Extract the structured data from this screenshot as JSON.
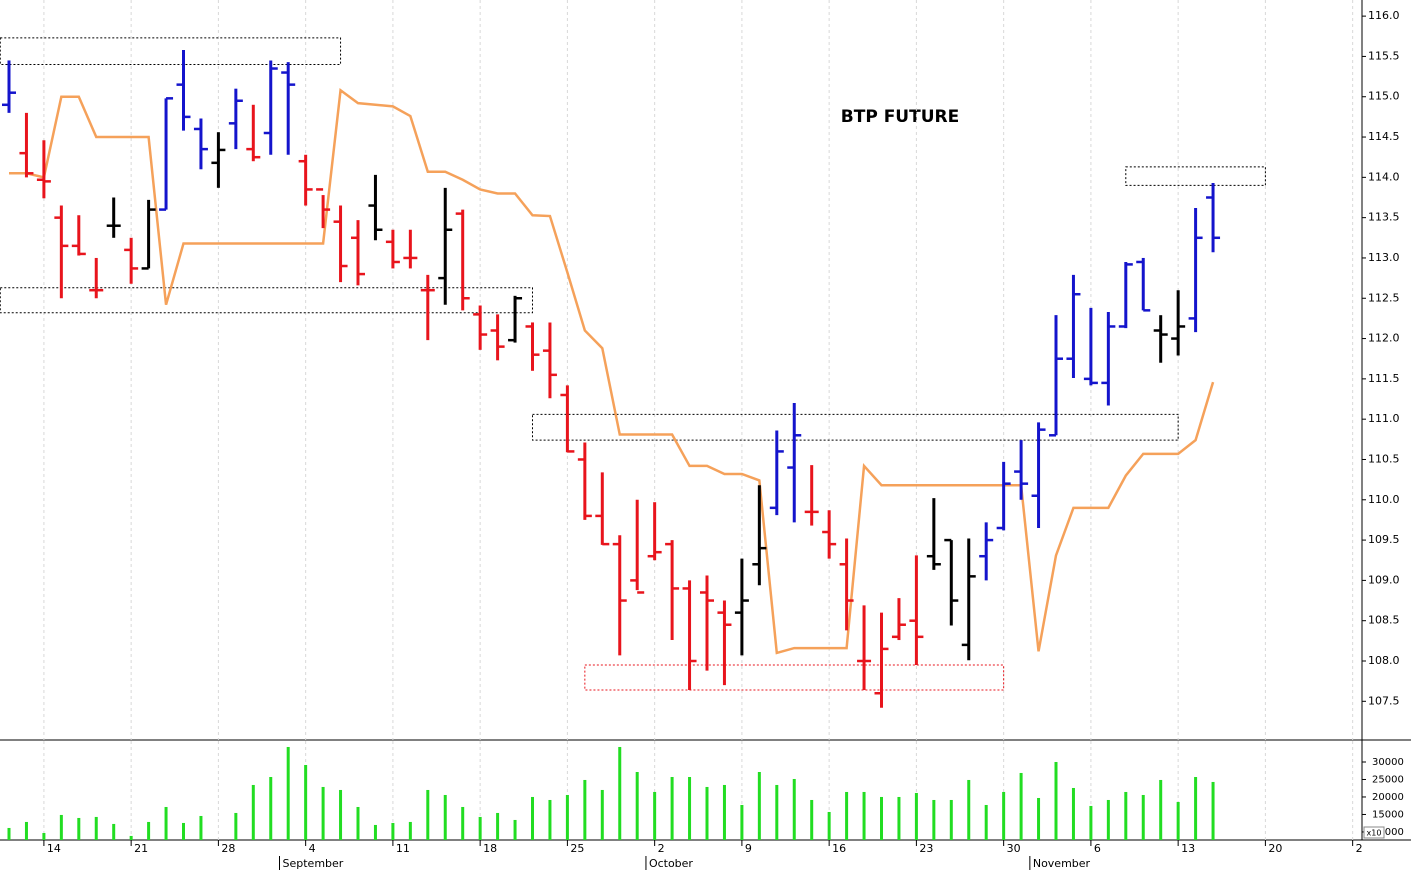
{
  "chart_data": [
    {
      "type": "ohlc",
      "title": "BTP FUTURE",
      "categories": [
        null,
        null,
        "14",
        null,
        null,
        null,
        null,
        "21",
        null,
        null,
        null,
        null,
        "28",
        null,
        null,
        null,
        null,
        "4",
        null,
        null,
        null,
        null,
        "11",
        null,
        null,
        null,
        null,
        "18",
        null,
        null,
        null,
        null,
        "25",
        null,
        null,
        null,
        null,
        "2",
        null,
        null,
        null,
        null,
        "9",
        null,
        null,
        null,
        null,
        "16",
        null,
        null,
        null,
        null,
        "23",
        null,
        null,
        null,
        null,
        "30",
        null,
        null,
        null,
        null,
        "6",
        null,
        null,
        null,
        null,
        "13",
        null,
        null,
        null,
        null,
        "20",
        null,
        null,
        null,
        null,
        "2"
      ],
      "months": [
        null,
        null,
        null,
        null,
        null,
        null,
        null,
        null,
        null,
        null,
        null,
        null,
        null,
        null,
        null,
        null,
        "September",
        null,
        null,
        null,
        null,
        null,
        null,
        null,
        null,
        null,
        null,
        null,
        null,
        null,
        null,
        null,
        null,
        null,
        null,
        null,
        null,
        "October",
        null,
        null,
        null,
        null,
        null,
        null,
        null,
        null,
        null,
        null,
        null,
        null,
        null,
        null,
        null,
        null,
        null,
        null,
        null,
        null,
        null,
        "November",
        null,
        null,
        null,
        null,
        null,
        null,
        null,
        null,
        null,
        null,
        null,
        null,
        null,
        null,
        null,
        null,
        null,
        null
      ],
      "open": [
        114.9,
        114.3,
        113.97,
        113.5,
        113.15,
        112.6,
        113.4,
        113.1,
        112.87,
        113.6,
        115.15,
        114.6,
        114.18,
        114.67,
        114.35,
        114.55,
        115.3,
        114.2,
        113.85,
        113.45,
        113.25,
        113.65,
        113.2,
        113.0,
        112.6,
        112.75,
        113.55,
        112.3,
        112.1,
        111.98,
        112.15,
        111.85,
        111.3,
        110.5,
        109.8,
        109.45,
        109.0,
        109.3,
        109.45,
        108.9,
        108.85,
        108.6,
        108.6,
        109.2,
        109.9,
        110.4,
        109.85,
        109.6,
        109.2,
        108.0,
        107.6,
        108.3,
        108.5,
        109.3,
        109.5,
        108.2,
        109.3,
        109.65,
        110.35,
        110.05,
        110.8,
        111.75,
        111.5,
        111.45,
        112.15,
        112.95,
        112.1,
        112.0,
        112.25,
        113.75,
        null,
        null,
        null,
        null,
        null,
        null,
        null,
        null
      ],
      "high": [
        115.45,
        114.8,
        114.46,
        113.65,
        113.53,
        113.0,
        113.75,
        113.25,
        113.72,
        114.98,
        115.58,
        114.73,
        114.56,
        115.1,
        114.9,
        115.45,
        115.43,
        114.28,
        113.78,
        113.65,
        113.47,
        114.03,
        113.35,
        113.35,
        112.79,
        113.87,
        113.6,
        112.41,
        112.3,
        112.53,
        112.2,
        112.2,
        111.42,
        110.71,
        110.34,
        109.56,
        110.0,
        109.97,
        109.5,
        109.0,
        109.06,
        108.75,
        109.27,
        110.18,
        110.86,
        111.2,
        110.43,
        109.87,
        109.52,
        108.69,
        108.6,
        108.78,
        109.31,
        110.02,
        109.5,
        109.52,
        109.72,
        110.47,
        110.74,
        110.96,
        112.29,
        112.79,
        112.38,
        112.33,
        112.95,
        113.0,
        112.29,
        112.6,
        113.62,
        113.93,
        null,
        null,
        null,
        null,
        null,
        null,
        null,
        null
      ],
      "low": [
        114.8,
        114.0,
        113.74,
        112.5,
        113.03,
        112.5,
        113.25,
        112.68,
        112.87,
        113.6,
        114.58,
        114.1,
        113.87,
        114.35,
        114.2,
        114.28,
        114.28,
        113.65,
        113.37,
        112.7,
        112.66,
        113.22,
        112.87,
        112.87,
        111.98,
        112.42,
        112.35,
        111.86,
        111.73,
        111.95,
        111.6,
        111.26,
        110.59,
        109.75,
        109.44,
        108.07,
        108.88,
        109.25,
        108.26,
        107.64,
        107.88,
        107.7,
        108.07,
        108.94,
        109.81,
        109.72,
        109.68,
        109.27,
        108.38,
        107.64,
        107.42,
        108.26,
        107.95,
        109.13,
        108.44,
        108.01,
        109.0,
        109.62,
        110.0,
        109.65,
        110.8,
        111.51,
        111.42,
        111.17,
        112.13,
        112.35,
        111.7,
        111.79,
        112.08,
        113.07,
        null,
        null,
        null,
        null,
        null,
        null,
        null,
        null
      ],
      "close": [
        115.05,
        114.05,
        113.95,
        113.15,
        113.05,
        112.6,
        113.4,
        112.87,
        113.6,
        114.98,
        114.75,
        114.35,
        114.34,
        114.95,
        114.25,
        115.35,
        115.15,
        113.85,
        113.6,
        112.9,
        112.8,
        113.35,
        112.95,
        113.0,
        112.6,
        113.35,
        112.5,
        112.05,
        111.9,
        112.5,
        111.8,
        111.55,
        110.6,
        109.8,
        109.45,
        108.75,
        108.85,
        109.35,
        108.9,
        108.0,
        108.75,
        108.45,
        108.75,
        109.4,
        110.6,
        110.8,
        109.85,
        109.45,
        108.75,
        108.0,
        108.15,
        108.45,
        108.3,
        109.2,
        108.75,
        109.05,
        109.5,
        110.2,
        110.2,
        110.87,
        111.75,
        112.55,
        111.45,
        112.15,
        112.92,
        112.35,
        112.05,
        112.15,
        113.25,
        113.25,
        null,
        null,
        null,
        null,
        null,
        null,
        null,
        null
      ],
      "palette": {
        "r": "#e8141c",
        "b": "#1414cc",
        "k": "#000000"
      },
      "bar_colors": [
        "b",
        "r",
        "r",
        "r",
        "r",
        "r",
        "k",
        "r",
        "k",
        "b",
        "b",
        "b",
        "k",
        "b",
        "r",
        "b",
        "b",
        "r",
        "r",
        "r",
        "r",
        "k",
        "r",
        "r",
        "r",
        "k",
        "r",
        "r",
        "r",
        "k",
        "r",
        "r",
        "r",
        "r",
        "r",
        "r",
        "r",
        "r",
        "r",
        "r",
        "r",
        "r",
        "k",
        "k",
        "b",
        "b",
        "r",
        "r",
        "r",
        "r",
        "r",
        "r",
        "r",
        "k",
        "k",
        "k",
        "b",
        "b",
        "b",
        "b",
        "b",
        "b",
        "b",
        "b",
        "b",
        "b",
        "k",
        "k",
        "b",
        "b",
        null,
        null,
        null,
        null,
        null,
        null,
        null,
        null
      ],
      "overlay": {
        "color": "#f5a15a",
        "values": [
          114.05,
          114.05,
          114.0,
          115.0,
          115.0,
          114.5,
          114.5,
          114.5,
          114.5,
          112.42,
          113.18,
          113.18,
          113.18,
          113.18,
          113.18,
          113.18,
          113.18,
          113.18,
          113.18,
          115.08,
          114.92,
          114.9,
          114.88,
          114.76,
          114.07,
          114.07,
          113.97,
          113.85,
          113.8,
          113.8,
          113.53,
          113.52,
          112.82,
          112.1,
          111.88,
          110.81,
          110.81,
          110.81,
          110.81,
          110.42,
          110.42,
          110.32,
          110.32,
          110.24,
          108.1,
          108.16,
          108.16,
          108.16,
          108.16,
          110.42,
          110.18,
          110.18,
          110.18,
          110.18,
          110.18,
          110.18,
          110.18,
          110.18,
          110.18,
          108.12,
          109.31,
          109.9,
          109.9,
          109.9,
          110.3,
          110.57,
          110.57,
          110.57,
          110.74,
          111.46,
          null,
          null,
          null,
          null,
          null,
          null,
          null,
          null
        ]
      },
      "zones": [
        {
          "x": [
            -0.5,
            19
          ],
          "y": [
            115.4,
            115.73
          ],
          "color": "#000000"
        },
        {
          "x": [
            -0.5,
            30
          ],
          "y": [
            112.32,
            112.63
          ],
          "color": "#000000"
        },
        {
          "x": [
            30,
            67
          ],
          "y": [
            110.74,
            111.06
          ],
          "color": "#000000"
        },
        {
          "x": [
            64,
            72
          ],
          "y": [
            113.9,
            114.13
          ],
          "color": "#000000"
        },
        {
          "x": [
            33,
            57
          ],
          "y": [
            107.64,
            107.95
          ],
          "color": "#e8141c"
        }
      ],
      "ylim": [
        107.02,
        116.2
      ],
      "yticks": [
        {
          "value": 107.5,
          "label": "107.5"
        },
        {
          "value": 108,
          "label": "108.0"
        },
        {
          "value": 108.5,
          "label": "108.5"
        },
        {
          "value": 109,
          "label": "109.0"
        },
        {
          "value": 109.5,
          "label": "109.5"
        },
        {
          "value": 110,
          "label": "110.0"
        },
        {
          "value": 110.5,
          "label": "110.5"
        },
        {
          "value": 111,
          "label": "111.0"
        },
        {
          "value": 111.5,
          "label": "111.5"
        },
        {
          "value": 112,
          "label": "112.0"
        },
        {
          "value": 112.5,
          "label": "112.5"
        },
        {
          "value": 113,
          "label": "113.0"
        },
        {
          "value": 113.5,
          "label": "113.5"
        },
        {
          "value": 114,
          "label": "114.0"
        },
        {
          "value": 114.5,
          "label": "114.5"
        },
        {
          "value": 115,
          "label": "115.0"
        },
        {
          "value": 115.5,
          "label": "115.5"
        },
        {
          "value": 116,
          "label": "116.0"
        }
      ],
      "grid": true
    },
    {
      "type": "bar",
      "color": "#22dd22",
      "values": [
        11140,
        12860,
        9700,
        14860,
        14000,
        14290,
        12290,
        8860,
        12860,
        17140,
        12570,
        14570,
        7700,
        15430,
        23430,
        25710,
        34290,
        29140,
        22860,
        22000,
        17140,
        12000,
        12570,
        12860,
        22000,
        20570,
        17140,
        14290,
        15430,
        13430,
        20000,
        19140,
        20570,
        24860,
        22000,
        34290,
        27140,
        21430,
        25710,
        25710,
        22860,
        23430,
        17710,
        27140,
        23430,
        25140,
        19140,
        15710,
        21430,
        21430,
        20000,
        20000,
        21140,
        19140,
        19140,
        24860,
        17710,
        21430,
        26860,
        19710,
        30000,
        22570,
        17430,
        19140,
        21430,
        20570,
        24860,
        18570,
        25710,
        24290,
        null,
        null,
        null,
        null,
        null,
        null,
        null,
        null
      ],
      "ylim": [
        7700,
        36000
      ],
      "yticks": [
        10000,
        15000,
        20000,
        25000,
        30000
      ],
      "unit_badge": "x10",
      "grid": true
    }
  ]
}
